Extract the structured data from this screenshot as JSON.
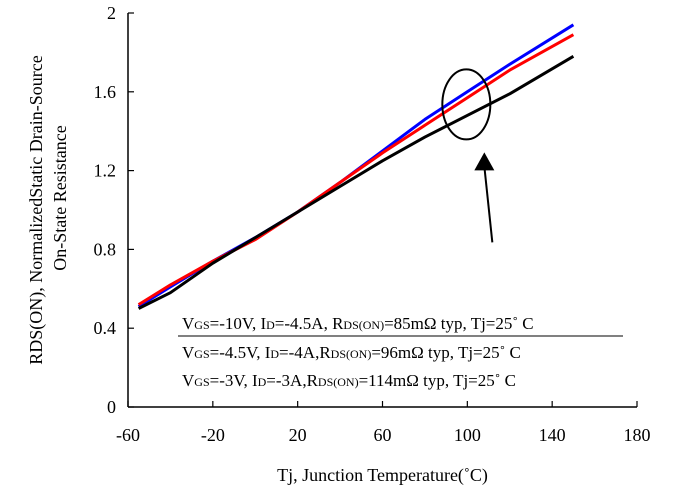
{
  "chart_data": {
    "type": "line",
    "title": "",
    "xlabel": "Tj, Junction Temperature(˚C)",
    "ylabel_line1": "RDS(ON), NormalizedStatic Drain-Source",
    "ylabel_line2": "On-State Resistance",
    "xlim": [
      -60,
      180
    ],
    "ylim": [
      0,
      2
    ],
    "x_ticks": [
      "-60",
      "-20",
      "20",
      "60",
      "100",
      "140",
      "180"
    ],
    "y_ticks": [
      "0",
      "0.4",
      "0.8",
      "1.2",
      "1.6",
      "2"
    ],
    "grid": false,
    "series": [
      {
        "name": "VGS=-10V, ID=-4.5A, RDS(ON)=85mΩ typ, Tj=25˚C",
        "color": "#0000ff",
        "x": [
          -55,
          -40,
          -20,
          0,
          20,
          40,
          60,
          80,
          100,
          120,
          150
        ],
        "y": [
          0.51,
          0.61,
          0.74,
          0.86,
          0.99,
          1.14,
          1.3,
          1.46,
          1.6,
          1.74,
          1.94
        ]
      },
      {
        "name": "VGS=-4.5V, ID=-4A, RDS(ON)=96mΩ typ, Tj=25˚C",
        "color": "#ff0000",
        "x": [
          -55,
          -40,
          -20,
          0,
          20,
          40,
          60,
          80,
          100,
          120,
          150
        ],
        "y": [
          0.52,
          0.62,
          0.74,
          0.85,
          0.99,
          1.14,
          1.29,
          1.43,
          1.57,
          1.71,
          1.89
        ]
      },
      {
        "name": "VGS=-3V, ID=-3A, RDS(ON)=114mΩ typ, Tj=25˚C",
        "color": "#000000",
        "x": [
          -55,
          -40,
          -20,
          0,
          20,
          40,
          60,
          80,
          100,
          120,
          150
        ],
        "y": [
          0.5,
          0.58,
          0.73,
          0.86,
          0.99,
          1.12,
          1.25,
          1.37,
          1.48,
          1.59,
          1.78
        ]
      }
    ],
    "legend": [
      {
        "prefix": "V",
        "sub1": "GS",
        "part1": "=-10V, I",
        "sub2": "D",
        "part2": "=-4.5A, R",
        "sub3": "DS(ON)",
        "part3": "=85mΩ typ, Tj=25˚ C"
      },
      {
        "prefix": "V",
        "sub1": "GS",
        "part1": "=-4.5V, I",
        "sub2": "D",
        "part2": "=-4A,R",
        "sub3": "DS(ON)",
        "part3": "=96mΩ typ, Tj=25˚ C"
      },
      {
        "prefix": "V",
        "sub1": "GS",
        "part1": "=-3V, I",
        "sub2": "D",
        "part2": "=-3A,R",
        "sub3": "DS(ON)",
        "part3": "=114mΩ typ, Tj=25˚ C"
      }
    ],
    "annotation": {
      "type": "ellipse-with-arrow",
      "x": 100,
      "y": 1.47
    }
  }
}
